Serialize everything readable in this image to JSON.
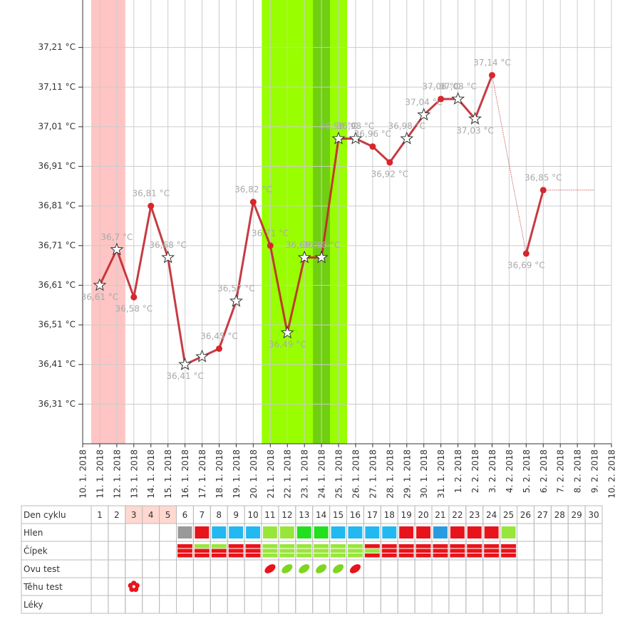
{
  "chart_data": {
    "type": "line",
    "x": [
      "10. 1. 2018",
      "11. 1. 2018",
      "12. 1. 2018",
      "13. 1. 2018",
      "14. 1. 2018",
      "15. 1. 2018",
      "16. 1. 2018",
      "17. 1. 2018",
      "18. 1. 2018",
      "19. 1. 2018",
      "20. 1. 2018",
      "21. 1. 2018",
      "22. 1. 2018",
      "23. 1. 2018",
      "24. 1. 2018",
      "25. 1. 2018",
      "26. 1. 2018",
      "27. 1. 2018",
      "28. 1. 2018",
      "29. 1. 2018",
      "30. 1. 2018",
      "31. 1. 2018",
      "1. 2. 2018",
      "2. 2. 2018",
      "3. 2. 2018",
      "4. 2. 2018",
      "5. 2. 2018",
      "6. 2. 2018",
      "7. 2. 2018",
      "8. 2. 2018",
      "9. 2. 2018",
      "10. 2. 2018"
    ],
    "ylim": [
      36.21,
      37.31
    ],
    "yticks": [
      {
        "value": 36.31,
        "label": "36,31 °C"
      },
      {
        "value": 36.41,
        "label": "36,41 °C"
      },
      {
        "value": 36.51,
        "label": "36,51 °C"
      },
      {
        "value": 36.61,
        "label": "36,61 °C"
      },
      {
        "value": 36.71,
        "label": "36,71 °C"
      },
      {
        "value": 36.81,
        "label": "36,81 °C"
      },
      {
        "value": 36.91,
        "label": "36,91 °C"
      },
      {
        "value": 37.01,
        "label": "37,01 °C"
      },
      {
        "value": 37.11,
        "label": "37,11 °C"
      },
      {
        "value": 37.21,
        "label": "37,21 °C"
      }
    ],
    "grid": true,
    "bands": [
      {
        "from": 1,
        "to": 2,
        "color": "#ffc4c4"
      },
      {
        "from": 11,
        "to": 15,
        "color": "#99ff00"
      },
      {
        "from": 14,
        "to": 14,
        "color": "#6fcf10"
      }
    ],
    "series": [
      {
        "color": "#c0272d",
        "values": [
          null,
          36.61,
          36.7,
          36.58,
          36.81,
          36.68,
          36.41,
          36.43,
          36.45,
          36.57,
          36.82,
          36.71,
          36.49,
          36.68,
          36.68,
          36.98,
          36.98,
          36.96,
          36.92,
          36.98,
          37.04,
          37.08,
          37.08,
          37.03,
          37.14,
          null,
          36.69,
          36.85,
          36.85,
          36.85,
          36.85,
          null
        ],
        "value_labels": [
          null,
          "36,61 °C",
          "36,7 °C",
          "36,58 °C",
          "36,81 °C",
          "36,68 °C",
          "36,41 °C",
          null,
          "36,45 °C",
          "36,57 °C",
          "36,82 °C",
          "36,71 °C",
          "36,49 °C",
          "36,68 °C",
          "36,68 °C",
          "36,98 °C",
          "36,98 °C",
          "36,96 °C",
          "36,92 °C",
          "36,98 °C",
          "37,04 °C",
          "37,08 °C",
          "37,08 °C",
          "37,03 °C",
          "37,14 °C",
          null,
          "36,69 °C",
          "36,85 °C",
          null,
          null,
          null,
          null
        ],
        "markers": [
          null,
          "star",
          "star",
          "dot",
          "dot",
          "star",
          "star",
          "star",
          "dot",
          "star",
          "dot",
          "dot",
          "star",
          "star",
          "star",
          "star",
          "star",
          "dot",
          "dot",
          "star",
          "star",
          "dot",
          "star",
          "star",
          "dot",
          null,
          "dot",
          "dot",
          null,
          null,
          null,
          null
        ]
      }
    ]
  },
  "table": {
    "header": "Den cyklu",
    "days": [
      1,
      2,
      3,
      4,
      5,
      6,
      7,
      8,
      9,
      10,
      11,
      12,
      13,
      14,
      15,
      16,
      17,
      18,
      19,
      20,
      21,
      22,
      23,
      24,
      25,
      26,
      27,
      28,
      29,
      30
    ],
    "day_colors": [
      null,
      null,
      "#ffd8d0",
      "#ffd8d0",
      "#ffd8d0",
      null,
      null,
      null,
      null,
      null,
      null,
      null,
      null,
      null,
      null,
      null,
      null,
      null,
      null,
      null,
      null,
      null,
      null,
      null,
      null,
      null,
      null,
      null,
      null,
      null
    ],
    "hlen": {
      "label": "Hlen",
      "cells": [
        null,
        null,
        null,
        null,
        null,
        "#999999",
        "#e8141b",
        "#22b8f0",
        "#22b8f0",
        "#22b8f0",
        "#99e63b",
        "#99e63b",
        "#22e01e",
        "#22e01e",
        "#22b8f0",
        "#22b8f0",
        "#22b8f0",
        "#22b8f0",
        "#e8141b",
        "#e8141b",
        "#2a9be0",
        "#e8141b",
        "#e8141b",
        "#e8141b",
        "#99e63b",
        null,
        null,
        null,
        null,
        null
      ]
    },
    "cipek": {
      "label": "Čípek",
      "cells": [
        null,
        null,
        null,
        null,
        null,
        [
          "#e8141b",
          "#e8141b",
          "#e8141b"
        ],
        [
          "#99e63b",
          "#e8141b",
          "#e8141b"
        ],
        [
          "#99e63b",
          "#e8141b",
          "#e8141b"
        ],
        [
          "#e8141b",
          "#e8141b",
          "#e8141b"
        ],
        [
          "#e8141b",
          "#e8141b",
          "#e8141b"
        ],
        [
          "#99e63b",
          "#99e63b",
          "#99e63b"
        ],
        [
          "#99e63b",
          "#99e63b",
          "#99e63b"
        ],
        [
          "#99e63b",
          "#99e63b",
          "#99e63b"
        ],
        [
          "#99e63b",
          "#99e63b",
          "#99e63b"
        ],
        [
          "#99e63b",
          "#99e63b",
          "#99e63b"
        ],
        [
          "#99e63b",
          "#99e63b",
          "#99e63b"
        ],
        [
          "#e8141b",
          "#99e63b",
          "#e8141b"
        ],
        [
          "#e8141b",
          "#e8141b",
          "#e8141b"
        ],
        [
          "#e8141b",
          "#e8141b",
          "#e8141b"
        ],
        [
          "#e8141b",
          "#e8141b",
          "#e8141b"
        ],
        [
          "#e8141b",
          "#e8141b",
          "#e8141b"
        ],
        [
          "#e8141b",
          "#e8141b",
          "#e8141b"
        ],
        [
          "#e8141b",
          "#e8141b",
          "#e8141b"
        ],
        [
          "#e8141b",
          "#e8141b",
          "#e8141b"
        ],
        [
          "#e8141b",
          "#e8141b",
          "#e8141b"
        ],
        null,
        null,
        null,
        null,
        null
      ]
    },
    "ovu": {
      "label": "Ovu test",
      "cells": [
        null,
        null,
        null,
        null,
        null,
        null,
        null,
        null,
        null,
        null,
        "#e8141b",
        "#7fd61e",
        "#7fd61e",
        "#7fd61e",
        "#7fd61e",
        "#e8141b",
        null,
        null,
        null,
        null,
        null,
        null,
        null,
        null,
        null,
        null,
        null,
        null,
        null,
        null
      ]
    },
    "tehu": {
      "label": "Těhu test",
      "cells": [
        null,
        null,
        "#e8141b",
        null,
        null,
        null,
        null,
        null,
        null,
        null,
        null,
        null,
        null,
        null,
        null,
        null,
        null,
        null,
        null,
        null,
        null,
        null,
        null,
        null,
        null,
        null,
        null,
        null,
        null,
        null
      ]
    },
    "leky": {
      "label": "Léky",
      "cells": []
    }
  }
}
